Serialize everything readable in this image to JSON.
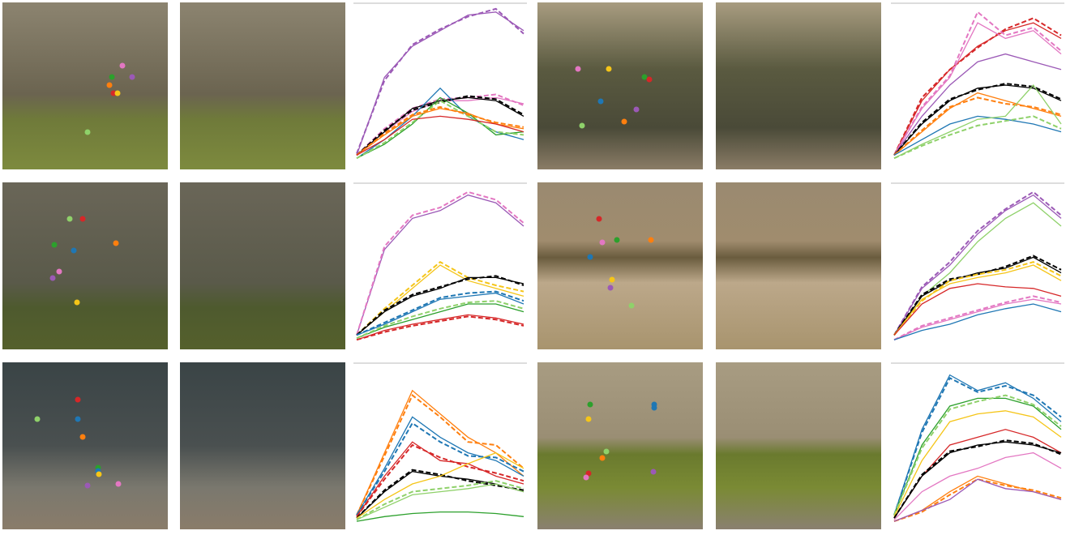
{
  "chart_data": [
    {
      "type": "line",
      "x": [
        0,
        1,
        2,
        3,
        4,
        5,
        6
      ],
      "xlim": [
        0,
        6
      ],
      "ylim": [
        0,
        1
      ],
      "series": [
        {
          "color": "#9b59b6",
          "values": [
            0.05,
            0.55,
            0.75,
            0.85,
            0.95,
            0.97,
            0.85
          ]
        },
        {
          "color": "#9b59b6",
          "dash": true,
          "values": [
            0.06,
            0.53,
            0.76,
            0.86,
            0.94,
            0.99,
            0.83
          ]
        },
        {
          "color": "#e377c2",
          "values": [
            0.05,
            0.2,
            0.33,
            0.4,
            0.4,
            0.42,
            0.38
          ]
        },
        {
          "color": "#e377c2",
          "dash": true,
          "values": [
            0.05,
            0.22,
            0.35,
            0.41,
            0.42,
            0.44,
            0.37
          ]
        },
        {
          "color": "#000000",
          "values": [
            0.05,
            0.2,
            0.35,
            0.4,
            0.42,
            0.4,
            0.3
          ]
        },
        {
          "color": "#000000",
          "dash": true,
          "values": [
            0.05,
            0.21,
            0.34,
            0.39,
            0.43,
            0.41,
            0.31
          ]
        },
        {
          "color": "#1f77b4",
          "values": [
            0.03,
            0.15,
            0.3,
            0.48,
            0.3,
            0.2,
            0.15
          ]
        },
        {
          "color": "#2ca02c",
          "values": [
            0.03,
            0.12,
            0.25,
            0.42,
            0.32,
            0.18,
            0.2
          ]
        },
        {
          "color": "#8fd16a",
          "dash": true,
          "values": [
            0.03,
            0.13,
            0.26,
            0.4,
            0.3,
            0.2,
            0.18
          ]
        },
        {
          "color": "#ff7f0e",
          "values": [
            0.05,
            0.18,
            0.3,
            0.35,
            0.32,
            0.25,
            0.22
          ]
        },
        {
          "color": "#ff7f0e",
          "dash": true,
          "values": [
            0.05,
            0.19,
            0.31,
            0.36,
            0.31,
            0.26,
            0.23
          ]
        },
        {
          "color": "#d62728",
          "values": [
            0.05,
            0.15,
            0.28,
            0.3,
            0.28,
            0.25,
            0.2
          ]
        }
      ]
    },
    {
      "type": "line",
      "x": [
        0,
        1,
        2,
        3,
        4,
        5,
        6
      ],
      "xlim": [
        0,
        6
      ],
      "ylim": [
        0,
        1
      ],
      "series": [
        {
          "color": "#d62728",
          "values": [
            0.05,
            0.4,
            0.6,
            0.75,
            0.85,
            0.9,
            0.8
          ]
        },
        {
          "color": "#d62728",
          "dash": true,
          "values": [
            0.05,
            0.42,
            0.6,
            0.74,
            0.86,
            0.93,
            0.82
          ]
        },
        {
          "color": "#e377c2",
          "values": [
            0.05,
            0.35,
            0.55,
            0.9,
            0.8,
            0.85,
            0.7
          ]
        },
        {
          "color": "#e377c2",
          "dash": true,
          "values": [
            0.05,
            0.36,
            0.56,
            0.97,
            0.82,
            0.87,
            0.72
          ]
        },
        {
          "color": "#9b59b6",
          "values": [
            0.05,
            0.3,
            0.5,
            0.65,
            0.7,
            0.65,
            0.6
          ]
        },
        {
          "color": "#000000",
          "values": [
            0.05,
            0.25,
            0.4,
            0.48,
            0.5,
            0.48,
            0.4
          ]
        },
        {
          "color": "#000000",
          "dash": true,
          "values": [
            0.05,
            0.26,
            0.41,
            0.47,
            0.51,
            0.49,
            0.41
          ]
        },
        {
          "color": "#ff7f0e",
          "values": [
            0.05,
            0.2,
            0.35,
            0.45,
            0.4,
            0.35,
            0.3
          ]
        },
        {
          "color": "#ff7f0e",
          "dash": true,
          "values": [
            0.05,
            0.21,
            0.36,
            0.42,
            0.38,
            0.36,
            0.31
          ]
        },
        {
          "color": "#1f77b4",
          "values": [
            0.05,
            0.15,
            0.25,
            0.3,
            0.28,
            0.25,
            0.2
          ]
        },
        {
          "color": "#8fd16a",
          "values": [
            0.03,
            0.12,
            0.2,
            0.28,
            0.3,
            0.5,
            0.25
          ]
        },
        {
          "color": "#8fd16a",
          "dash": true,
          "values": [
            0.03,
            0.11,
            0.18,
            0.24,
            0.27,
            0.3,
            0.22
          ]
        }
      ]
    },
    {
      "type": "line",
      "x": [
        0,
        1,
        2,
        3,
        4,
        5,
        6
      ],
      "xlim": [
        0,
        6
      ],
      "ylim": [
        0,
        1
      ],
      "series": [
        {
          "color": "#9b59b6",
          "values": [
            0.05,
            0.6,
            0.8,
            0.85,
            0.95,
            0.9,
            0.75
          ]
        },
        {
          "color": "#e377c2",
          "dash": true,
          "values": [
            0.05,
            0.62,
            0.82,
            0.87,
            0.97,
            0.92,
            0.77
          ]
        },
        {
          "color": "#f5c518",
          "values": [
            0.05,
            0.2,
            0.35,
            0.5,
            0.4,
            0.35,
            0.3
          ]
        },
        {
          "color": "#f5c518",
          "dash": true,
          "values": [
            0.05,
            0.22,
            0.37,
            0.52,
            0.42,
            0.37,
            0.33
          ]
        },
        {
          "color": "#000000",
          "values": [
            0.05,
            0.2,
            0.3,
            0.35,
            0.42,
            0.42,
            0.38
          ]
        },
        {
          "color": "#000000",
          "dash": true,
          "values": [
            0.05,
            0.21,
            0.31,
            0.36,
            0.41,
            0.43,
            0.37
          ]
        },
        {
          "color": "#1f77b4",
          "values": [
            0.05,
            0.12,
            0.2,
            0.28,
            0.3,
            0.32,
            0.25
          ]
        },
        {
          "color": "#1f77b4",
          "dash": true,
          "values": [
            0.05,
            0.13,
            0.21,
            0.29,
            0.32,
            0.33,
            0.27
          ]
        },
        {
          "color": "#2ca02c",
          "values": [
            0.03,
            0.1,
            0.15,
            0.2,
            0.25,
            0.25,
            0.2
          ]
        },
        {
          "color": "#8fd16a",
          "dash": true,
          "values": [
            0.03,
            0.11,
            0.17,
            0.22,
            0.26,
            0.27,
            0.22
          ]
        },
        {
          "color": "#d62728",
          "values": [
            0.02,
            0.08,
            0.12,
            0.15,
            0.18,
            0.16,
            0.12
          ]
        },
        {
          "color": "#d62728",
          "dash": true,
          "values": [
            0.02,
            0.07,
            0.11,
            0.14,
            0.17,
            0.15,
            0.11
          ]
        }
      ]
    },
    {
      "type": "line",
      "x": [
        0,
        1,
        2,
        3,
        4,
        5,
        6
      ],
      "xlim": [
        0,
        6
      ],
      "ylim": [
        0,
        1
      ],
      "series": [
        {
          "color": "#9b59b6",
          "values": [
            0.05,
            0.35,
            0.5,
            0.7,
            0.85,
            0.95,
            0.8
          ]
        },
        {
          "color": "#9b59b6",
          "dash": true,
          "values": [
            0.05,
            0.36,
            0.52,
            0.72,
            0.86,
            0.97,
            0.82
          ]
        },
        {
          "color": "#8fd16a",
          "values": [
            0.05,
            0.3,
            0.45,
            0.65,
            0.8,
            0.9,
            0.75
          ]
        },
        {
          "color": "#000000",
          "values": [
            0.05,
            0.3,
            0.4,
            0.45,
            0.48,
            0.55,
            0.45
          ]
        },
        {
          "color": "#000000",
          "dash": true,
          "values": [
            0.05,
            0.31,
            0.41,
            0.44,
            0.49,
            0.56,
            0.47
          ]
        },
        {
          "color": "#f5c518",
          "values": [
            0.05,
            0.28,
            0.38,
            0.42,
            0.45,
            0.5,
            0.4
          ]
        },
        {
          "color": "#f5c518",
          "dash": true,
          "values": [
            0.05,
            0.27,
            0.4,
            0.44,
            0.47,
            0.52,
            0.43
          ]
        },
        {
          "color": "#d62728",
          "values": [
            0.05,
            0.25,
            0.35,
            0.38,
            0.36,
            0.35,
            0.3
          ]
        },
        {
          "color": "#e377c2",
          "values": [
            0.02,
            0.1,
            0.15,
            0.2,
            0.25,
            0.28,
            0.25
          ]
        },
        {
          "color": "#e377c2",
          "dash": true,
          "values": [
            0.02,
            0.11,
            0.16,
            0.21,
            0.26,
            0.3,
            0.26
          ]
        },
        {
          "color": "#1f77b4",
          "values": [
            0.02,
            0.08,
            0.12,
            0.18,
            0.22,
            0.25,
            0.2
          ]
        }
      ]
    },
    {
      "type": "line",
      "x": [
        0,
        1,
        2,
        3,
        4,
        5,
        6
      ],
      "xlim": [
        0,
        6
      ],
      "ylim": [
        0,
        1
      ],
      "series": [
        {
          "color": "#ff7f0e",
          "values": [
            0.05,
            0.45,
            0.85,
            0.7,
            0.55,
            0.45,
            0.3
          ]
        },
        {
          "color": "#ff7f0e",
          "dash": true,
          "values": [
            0.05,
            0.43,
            0.82,
            0.68,
            0.52,
            0.5,
            0.35
          ]
        },
        {
          "color": "#1f77b4",
          "values": [
            0.05,
            0.35,
            0.68,
            0.55,
            0.45,
            0.4,
            0.3
          ]
        },
        {
          "color": "#1f77b4",
          "dash": true,
          "values": [
            0.05,
            0.33,
            0.64,
            0.52,
            0.43,
            0.42,
            0.33
          ]
        },
        {
          "color": "#d62728",
          "values": [
            0.04,
            0.3,
            0.52,
            0.4,
            0.38,
            0.3,
            0.25
          ]
        },
        {
          "color": "#d62728",
          "dash": true,
          "values": [
            0.04,
            0.28,
            0.5,
            0.42,
            0.36,
            0.32,
            0.27
          ]
        },
        {
          "color": "#000000",
          "values": [
            0.03,
            0.2,
            0.33,
            0.3,
            0.28,
            0.25,
            0.2
          ]
        },
        {
          "color": "#000000",
          "dash": true,
          "values": [
            0.03,
            0.21,
            0.34,
            0.31,
            0.27,
            0.24,
            0.21
          ]
        },
        {
          "color": "#f5c518",
          "values": [
            0.03,
            0.15,
            0.25,
            0.3,
            0.38,
            0.45,
            0.35
          ]
        },
        {
          "color": "#8fd16a",
          "values": [
            0.02,
            0.1,
            0.18,
            0.2,
            0.22,
            0.25,
            0.2
          ]
        },
        {
          "color": "#8fd16a",
          "dash": true,
          "values": [
            0.02,
            0.12,
            0.2,
            0.22,
            0.24,
            0.27,
            0.22
          ]
        },
        {
          "color": "#2ca02c",
          "values": [
            0.01,
            0.04,
            0.06,
            0.07,
            0.07,
            0.06,
            0.04
          ]
        }
      ]
    },
    {
      "type": "line",
      "x": [
        0,
        1,
        2,
        3,
        4,
        5,
        6
      ],
      "xlim": [
        0,
        6
      ],
      "ylim": [
        0,
        1
      ],
      "series": [
        {
          "color": "#1f77b4",
          "values": [
            0.05,
            0.6,
            0.95,
            0.85,
            0.9,
            0.8,
            0.65
          ]
        },
        {
          "color": "#1f77b4",
          "dash": true,
          "values": [
            0.05,
            0.58,
            0.93,
            0.84,
            0.88,
            0.82,
            0.68
          ]
        },
        {
          "color": "#2ca02c",
          "values": [
            0.05,
            0.5,
            0.75,
            0.8,
            0.8,
            0.75,
            0.6
          ]
        },
        {
          "color": "#8fd16a",
          "dash": true,
          "values": [
            0.05,
            0.48,
            0.73,
            0.78,
            0.82,
            0.76,
            0.62
          ]
        },
        {
          "color": "#f5c518",
          "values": [
            0.04,
            0.4,
            0.65,
            0.7,
            0.72,
            0.68,
            0.55
          ]
        },
        {
          "color": "#d62728",
          "values": [
            0.03,
            0.3,
            0.5,
            0.55,
            0.6,
            0.55,
            0.45
          ]
        },
        {
          "color": "#000000",
          "values": [
            0.03,
            0.3,
            0.45,
            0.5,
            0.52,
            0.5,
            0.45
          ]
        },
        {
          "color": "#000000",
          "dash": true,
          "values": [
            0.03,
            0.31,
            0.46,
            0.49,
            0.53,
            0.51,
            0.44
          ]
        },
        {
          "color": "#e377c2",
          "values": [
            0.02,
            0.2,
            0.3,
            0.35,
            0.42,
            0.45,
            0.35
          ]
        },
        {
          "color": "#ff7f0e",
          "values": [
            0.01,
            0.08,
            0.2,
            0.3,
            0.25,
            0.2,
            0.15
          ]
        },
        {
          "color": "#ff7f0e",
          "dash": true,
          "values": [
            0.01,
            0.07,
            0.18,
            0.28,
            0.24,
            0.21,
            0.16
          ]
        },
        {
          "color": "#9b59b6",
          "values": [
            0.01,
            0.08,
            0.15,
            0.28,
            0.22,
            0.2,
            0.15
          ]
        }
      ]
    }
  ]
}
